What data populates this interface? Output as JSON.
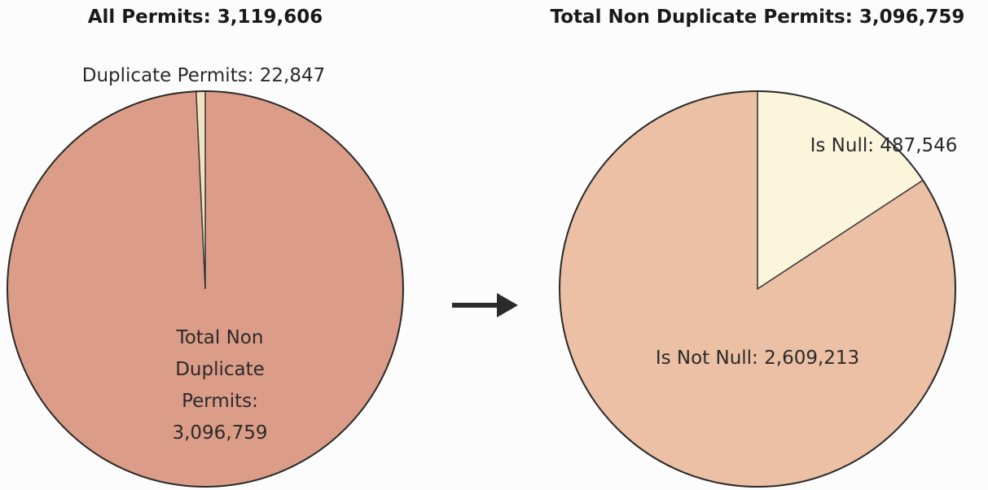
{
  "chart_data": [
    {
      "type": "pie",
      "title": "All Permits: 3,119,606",
      "categories": [
        "Total Non Duplicate Permits:",
        "Duplicate Permits:"
      ],
      "values": [
        3096759,
        22847
      ],
      "value_labels": [
        "3,096,759",
        "22,847"
      ],
      "colors": [
        "#dc9d88",
        "#f3e2bf"
      ]
    },
    {
      "type": "pie",
      "title": "Total Non Duplicate Permits: 3,096,759",
      "categories": [
        "Is Null:",
        "Is Not Null:"
      ],
      "values": [
        487546,
        2609213
      ],
      "value_labels": [
        "487,546",
        "2,609,213"
      ],
      "colors": [
        "#fbf5dc",
        "#ecc0a4"
      ]
    }
  ]
}
